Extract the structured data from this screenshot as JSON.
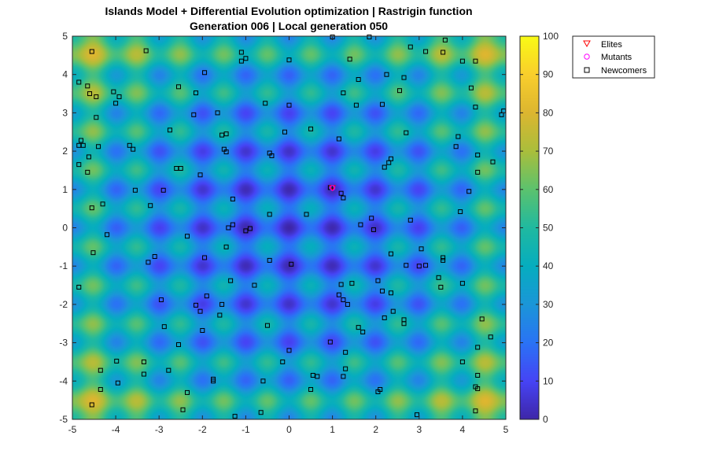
{
  "chart_data": {
    "type": "scatter",
    "title": "Islands Model + Differential Evolution optimization | Rastrigin function",
    "subtitle": "Generation 006 | Local generation 050",
    "xlabel": "",
    "ylabel": "",
    "xlim": [
      -5,
      5
    ],
    "ylim": [
      -5,
      5
    ],
    "x_ticks": [
      -5,
      -4,
      -3,
      -2,
      -1,
      0,
      1,
      2,
      3,
      4,
      5
    ],
    "y_ticks": [
      -5,
      -4,
      -3,
      -2,
      -1,
      0,
      1,
      2,
      3,
      4,
      5
    ],
    "grid": false,
    "background": {
      "type": "heatmap",
      "function": "Rastrigin",
      "colormap": "parula",
      "clim": [
        0,
        100
      ]
    },
    "colorbar": {
      "ticks": [
        0,
        10,
        20,
        30,
        40,
        50,
        60,
        70,
        80,
        90,
        100
      ],
      "colors": [
        "#3E26A8",
        "#4644F5",
        "#2A73F5",
        "#1B96D8",
        "#06ADBF",
        "#20B9A0",
        "#5CC26E",
        "#AABE3C",
        "#DCB630",
        "#F9CE2C",
        "#F9FB15"
      ]
    },
    "legend": {
      "placement": "outside-top-right",
      "entries": [
        {
          "label": "Elites",
          "marker": "triangle-down",
          "color": "#FF0000"
        },
        {
          "label": "Mutants",
          "marker": "circle",
          "color": "#FF00FF"
        },
        {
          "label": "Newcomers",
          "marker": "square",
          "color": "#000000"
        }
      ]
    },
    "series": [
      {
        "name": "Elites",
        "points": [
          [
            1.0,
            1.04
          ]
        ]
      },
      {
        "name": "Mutants",
        "points": [
          [
            1.0,
            1.04
          ]
        ]
      },
      {
        "name": "Newcomers",
        "points": [
          [
            -4.55,
            4.6
          ],
          [
            -4.85,
            3.8
          ],
          [
            -4.6,
            3.5
          ],
          [
            -4.65,
            3.7
          ],
          [
            -4.45,
            3.42
          ],
          [
            -4.45,
            2.88
          ],
          [
            -4.85,
            2.15
          ],
          [
            -4.8,
            2.28
          ],
          [
            -4.75,
            2.15
          ],
          [
            -4.4,
            2.12
          ],
          [
            -4.85,
            1.65
          ],
          [
            -4.65,
            1.45
          ],
          [
            -4.55,
            0.52
          ],
          [
            -4.3,
            0.62
          ],
          [
            -4.2,
            -0.18
          ],
          [
            -4.85,
            -1.55
          ],
          [
            -3.3,
            4.62
          ],
          [
            -4.05,
            3.55
          ],
          [
            -3.92,
            3.42
          ],
          [
            -4.0,
            3.25
          ],
          [
            -3.68,
            2.15
          ],
          [
            -3.6,
            2.05
          ],
          [
            -3.55,
            0.98
          ],
          [
            -3.1,
            -0.75
          ],
          [
            -3.25,
            -0.9
          ],
          [
            -3.2,
            0.58
          ],
          [
            -2.95,
            -1.88
          ],
          [
            -2.9,
            0.98
          ],
          [
            -2.75,
            2.55
          ],
          [
            -2.6,
            1.55
          ],
          [
            -2.5,
            1.55
          ],
          [
            -2.55,
            3.68
          ],
          [
            -2.35,
            -0.22
          ],
          [
            -2.15,
            3.52
          ],
          [
            -2.2,
            2.95
          ],
          [
            -2.05,
            1.38
          ],
          [
            -1.95,
            4.05
          ],
          [
            -1.95,
            -0.78
          ],
          [
            -2.0,
            -2.68
          ],
          [
            -1.9,
            -1.78
          ],
          [
            -2.05,
            -2.18
          ],
          [
            -2.15,
            -2.02
          ],
          [
            -2.35,
            -4.3
          ],
          [
            -2.45,
            -4.75
          ],
          [
            -2.55,
            -3.05
          ],
          [
            -2.88,
            -2.58
          ],
          [
            -2.78,
            -3.72
          ],
          [
            -3.35,
            -3.5
          ],
          [
            -3.35,
            -3.82
          ],
          [
            -3.98,
            -3.48
          ],
          [
            -3.95,
            -4.05
          ],
          [
            -4.35,
            -3.72
          ],
          [
            -4.55,
            -4.62
          ],
          [
            -4.35,
            -4.22
          ],
          [
            -1.75,
            -4.0
          ],
          [
            -1.75,
            -3.95
          ],
          [
            -1.65,
            3.0
          ],
          [
            -1.55,
            2.42
          ],
          [
            -1.5,
            2.05
          ],
          [
            -1.45,
            1.98
          ],
          [
            -1.45,
            2.45
          ],
          [
            -1.4,
            0.0
          ],
          [
            -1.3,
            0.08
          ],
          [
            -1.3,
            0.75
          ],
          [
            -1.45,
            -0.5
          ],
          [
            -1.35,
            -1.38
          ],
          [
            -1.55,
            -2.0
          ],
          [
            -1.6,
            -2.28
          ],
          [
            -1.25,
            -4.92
          ],
          [
            -1.1,
            4.58
          ],
          [
            -1.1,
            4.35
          ],
          [
            -1.0,
            4.42
          ],
          [
            -1.0,
            -0.08
          ],
          [
            -0.9,
            -0.02
          ],
          [
            -0.8,
            -1.5
          ],
          [
            -0.65,
            -4.82
          ],
          [
            -0.6,
            -4.0
          ],
          [
            -0.55,
            3.25
          ],
          [
            -0.45,
            1.95
          ],
          [
            -0.4,
            1.88
          ],
          [
            -0.45,
            0.35
          ],
          [
            -0.45,
            -0.85
          ],
          [
            -0.5,
            -2.55
          ],
          [
            -0.1,
            2.5
          ],
          [
            -0.15,
            -3.5
          ],
          [
            0.0,
            4.38
          ],
          [
            0.0,
            3.2
          ],
          [
            0.05,
            -0.95
          ],
          [
            0.0,
            -3.2
          ],
          [
            0.4,
            0.35
          ],
          [
            0.5,
            2.58
          ],
          [
            0.55,
            -3.85
          ],
          [
            0.5,
            -4.22
          ],
          [
            0.65,
            -3.88
          ],
          [
            1.0,
            4.98
          ],
          [
            1.15,
            2.32
          ],
          [
            1.2,
            0.9
          ],
          [
            1.25,
            0.78
          ],
          [
            1.25,
            3.52
          ],
          [
            1.2,
            -1.48
          ],
          [
            1.15,
            -1.75
          ],
          [
            1.25,
            -1.88
          ],
          [
            1.35,
            -2.0
          ],
          [
            1.3,
            -3.25
          ],
          [
            1.3,
            -3.68
          ],
          [
            1.25,
            -3.88
          ],
          [
            0.95,
            -2.98
          ],
          [
            0.95,
            1.05
          ],
          [
            1.4,
            4.4
          ],
          [
            1.45,
            -1.45
          ],
          [
            1.55,
            3.2
          ],
          [
            1.6,
            3.87
          ],
          [
            1.65,
            0.08
          ],
          [
            1.6,
            -2.6
          ],
          [
            1.7,
            -2.72
          ],
          [
            1.85,
            4.98
          ],
          [
            1.9,
            0.25
          ],
          [
            1.95,
            -0.05
          ],
          [
            2.05,
            -1.38
          ],
          [
            2.1,
            -4.22
          ],
          [
            2.05,
            -4.28
          ],
          [
            2.15,
            -1.65
          ],
          [
            2.2,
            -2.35
          ],
          [
            2.2,
            1.58
          ],
          [
            2.3,
            1.7
          ],
          [
            2.35,
            1.8
          ],
          [
            2.35,
            -0.68
          ],
          [
            2.35,
            -1.7
          ],
          [
            2.4,
            -2.18
          ],
          [
            2.15,
            3.22
          ],
          [
            2.25,
            4.0
          ],
          [
            2.55,
            3.58
          ],
          [
            2.65,
            3.92
          ],
          [
            2.65,
            -2.5
          ],
          [
            2.65,
            -2.4
          ],
          [
            2.7,
            2.48
          ],
          [
            2.7,
            -0.98
          ],
          [
            2.8,
            4.72
          ],
          [
            2.8,
            0.2
          ],
          [
            2.95,
            -4.88
          ],
          [
            3.0,
            -1.0
          ],
          [
            3.05,
            -0.55
          ],
          [
            3.15,
            -0.98
          ],
          [
            3.15,
            4.6
          ],
          [
            3.45,
            -1.3
          ],
          [
            3.5,
            -1.55
          ],
          [
            3.55,
            -0.78
          ],
          [
            3.55,
            -0.85
          ],
          [
            3.55,
            4.58
          ],
          [
            3.6,
            4.9
          ],
          [
            3.9,
            2.38
          ],
          [
            3.85,
            2.12
          ],
          [
            3.95,
            0.42
          ],
          [
            4.0,
            4.35
          ],
          [
            4.0,
            -3.5
          ],
          [
            4.15,
            0.95
          ],
          [
            4.2,
            3.65
          ],
          [
            4.3,
            4.35
          ],
          [
            4.3,
            3.15
          ],
          [
            4.35,
            1.9
          ],
          [
            4.35,
            1.45
          ],
          [
            4.35,
            -3.12
          ],
          [
            4.35,
            -3.85
          ],
          [
            4.35,
            -4.2
          ],
          [
            4.3,
            -4.78
          ],
          [
            4.3,
            -4.15
          ],
          [
            4.0,
            -1.45
          ],
          [
            4.45,
            -2.38
          ],
          [
            4.65,
            -2.85
          ],
          [
            4.7,
            1.72
          ],
          [
            4.9,
            2.95
          ],
          [
            4.95,
            3.05
          ],
          [
            -4.62,
            1.85
          ],
          [
            -4.52,
            -0.65
          ]
        ]
      }
    ]
  }
}
